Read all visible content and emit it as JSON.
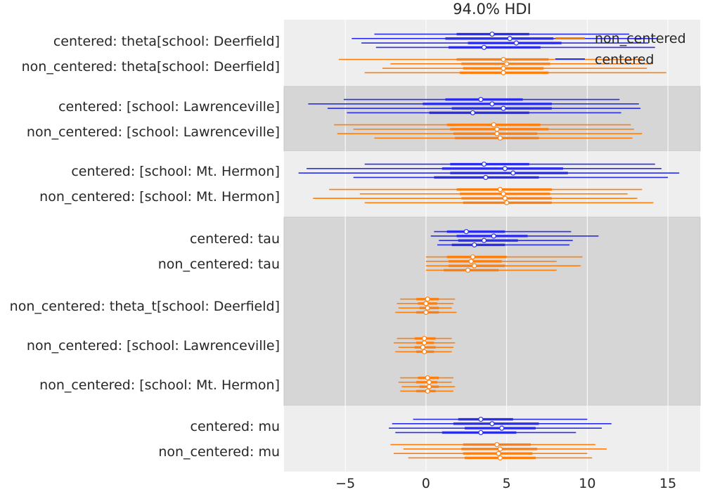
{
  "chart_data": {
    "type": "forest",
    "title": "94.0% HDI",
    "xlim": [
      -8.8,
      17.0
    ],
    "xticks": [
      {
        "v": -5,
        "label": "−5"
      },
      {
        "v": 0,
        "label": "0"
      },
      {
        "v": 5,
        "label": "5"
      },
      {
        "v": 10,
        "label": "10"
      },
      {
        "v": 15,
        "label": "15"
      }
    ],
    "legend": {
      "position": "top-right",
      "entries": [
        {
          "label": "non_centered",
          "color": "#ff7f0e"
        },
        {
          "label": "centered",
          "color": "#2a2eec"
        }
      ]
    },
    "colors": {
      "centered": "#2a2eec",
      "non_centered": "#ff7f0e",
      "band_light": "#eeeeee",
      "band_dark": "#d6d6d6"
    },
    "bands": [
      {
        "from": 0,
        "to": 2,
        "shade": "light"
      },
      {
        "from": 2,
        "to": 4,
        "shade": "dark"
      },
      {
        "from": 4,
        "to": 6,
        "shade": "light"
      },
      {
        "from": 6,
        "to": 11,
        "shade": "dark"
      },
      {
        "from": 11,
        "to": 13,
        "shade": "light"
      }
    ],
    "rows": [
      {
        "label": "centered: theta[school: Deerfield]",
        "model": "centered",
        "chains": [
          {
            "lo": -3.2,
            "q1": 1.9,
            "med": 4.1,
            "q3": 6.4,
            "hi": 12.6
          },
          {
            "lo": -4.6,
            "q1": 1.2,
            "med": 5.2,
            "q3": 7.9,
            "hi": 14.3
          },
          {
            "lo": -4.0,
            "q1": 2.6,
            "med": 5.6,
            "q3": 8.4,
            "hi": 13.8
          },
          {
            "lo": -3.1,
            "q1": 1.4,
            "med": 3.6,
            "q3": 7.1,
            "hi": 14.2
          }
        ]
      },
      {
        "label": "non_centered: theta[school: Deerfield]",
        "model": "non_centered",
        "chains": [
          {
            "lo": -5.4,
            "q1": 1.9,
            "med": 4.8,
            "q3": 7.6,
            "hi": 13.4
          },
          {
            "lo": -2.2,
            "q1": 2.2,
            "med": 5.0,
            "q3": 7.7,
            "hi": 14.0
          },
          {
            "lo": -2.7,
            "q1": 2.3,
            "med": 4.8,
            "q3": 7.3,
            "hi": 13.7
          },
          {
            "lo": -3.8,
            "q1": 2.1,
            "med": 4.8,
            "q3": 7.6,
            "hi": 14.9
          }
        ]
      },
      {
        "label": "centered: [school: Lawrenceville]",
        "model": "centered",
        "chains": [
          {
            "lo": -5.1,
            "q1": 1.2,
            "med": 3.4,
            "q3": 6.0,
            "hi": 12.0
          },
          {
            "lo": -7.3,
            "q1": -0.2,
            "med": 4.1,
            "q3": 7.8,
            "hi": 13.2
          },
          {
            "lo": -6.1,
            "q1": 1.6,
            "med": 4.8,
            "q3": 7.8,
            "hi": 13.3
          },
          {
            "lo": -4.9,
            "q1": 0.2,
            "med": 2.9,
            "q3": 6.4,
            "hi": 12.1
          }
        ]
      },
      {
        "label": "non_centered: [school: Lawrenceville]",
        "model": "non_centered",
        "chains": [
          {
            "lo": -5.7,
            "q1": 1.3,
            "med": 4.2,
            "q3": 7.1,
            "hi": 12.7
          },
          {
            "lo": -4.5,
            "q1": 1.5,
            "med": 4.4,
            "q3": 7.6,
            "hi": 12.9
          },
          {
            "lo": -5.5,
            "q1": 1.7,
            "med": 4.4,
            "q3": 6.9,
            "hi": 13.4
          },
          {
            "lo": -3.2,
            "q1": 1.8,
            "med": 4.6,
            "q3": 7.0,
            "hi": 12.8
          }
        ]
      },
      {
        "label": "centered: [school: Mt. Hermon]",
        "model": "centered",
        "chains": [
          {
            "lo": -3.8,
            "q1": 1.5,
            "med": 3.6,
            "q3": 6.4,
            "hi": 14.2
          },
          {
            "lo": -7.4,
            "q1": 1.0,
            "med": 4.9,
            "q3": 8.5,
            "hi": 14.6
          },
          {
            "lo": -7.9,
            "q1": 1.5,
            "med": 5.4,
            "q3": 8.8,
            "hi": 15.7
          },
          {
            "lo": -4.5,
            "q1": 0.5,
            "med": 3.7,
            "q3": 7.0,
            "hi": 15.0
          }
        ]
      },
      {
        "label": "non_centered: [school: Mt. Hermon]",
        "model": "non_centered",
        "chains": [
          {
            "lo": -6.0,
            "q1": 1.9,
            "med": 4.6,
            "q3": 7.8,
            "hi": 13.4
          },
          {
            "lo": -4.1,
            "q1": 2.1,
            "med": 4.8,
            "q3": 7.7,
            "hi": 12.5
          },
          {
            "lo": -7.0,
            "q1": 2.2,
            "med": 4.9,
            "q3": 7.8,
            "hi": 13.1
          },
          {
            "lo": -3.8,
            "q1": 2.3,
            "med": 5.0,
            "q3": 7.8,
            "hi": 14.1
          }
        ]
      },
      {
        "label": "centered: tau",
        "model": "centered",
        "chains": [
          {
            "lo": 0.5,
            "q1": 1.3,
            "med": 2.5,
            "q3": 4.9,
            "hi": 9.0
          },
          {
            "lo": 0.3,
            "q1": 1.9,
            "med": 4.2,
            "q3": 6.3,
            "hi": 10.7
          },
          {
            "lo": 0.8,
            "q1": 2.0,
            "med": 3.6,
            "q3": 5.7,
            "hi": 9.1
          },
          {
            "lo": 0.7,
            "q1": 1.6,
            "med": 3.0,
            "q3": 4.9,
            "hi": 8.9
          }
        ]
      },
      {
        "label": "non_centered: tau",
        "model": "non_centered",
        "chains": [
          {
            "lo": 0.0,
            "q1": 1.3,
            "med": 2.9,
            "q3": 5.0,
            "hi": 9.7
          },
          {
            "lo": 0.0,
            "q1": 1.4,
            "med": 2.8,
            "q3": 4.7,
            "hi": 8.1
          },
          {
            "lo": 0.0,
            "q1": 1.4,
            "med": 3.0,
            "q3": 4.9,
            "hi": 9.6
          },
          {
            "lo": 0.0,
            "q1": 1.1,
            "med": 2.6,
            "q3": 4.5,
            "hi": 8.1
          }
        ]
      },
      {
        "label": "non_centered: theta_t[school: Deerfield]",
        "model": "non_centered",
        "chains": [
          {
            "lo": -1.6,
            "q1": -0.6,
            "med": 0.1,
            "q3": 0.8,
            "hi": 1.8
          },
          {
            "lo": -1.8,
            "q1": -0.5,
            "med": 0.0,
            "q3": 0.7,
            "hi": 1.7
          },
          {
            "lo": -1.7,
            "q1": -0.4,
            "med": 0.1,
            "q3": 0.8,
            "hi": 1.6
          },
          {
            "lo": -1.9,
            "q1": -0.6,
            "med": 0.0,
            "q3": 0.8,
            "hi": 1.9
          }
        ]
      },
      {
        "label": "non_centered: [school: Lawrenceville]",
        "model": "non_centered",
        "chains": [
          {
            "lo": -1.8,
            "q1": -0.7,
            "med": -0.1,
            "q3": 0.6,
            "hi": 1.6
          },
          {
            "lo": -2.0,
            "q1": -0.6,
            "med": -0.1,
            "q3": 0.5,
            "hi": 1.8
          },
          {
            "lo": -1.7,
            "q1": -0.7,
            "med": -0.2,
            "q3": 0.6,
            "hi": 1.7
          },
          {
            "lo": -1.9,
            "q1": -0.6,
            "med": -0.1,
            "q3": 0.5,
            "hi": 1.6
          }
        ]
      },
      {
        "label": "non_centered: [school: Mt. Hermon]",
        "model": "non_centered",
        "chains": [
          {
            "lo": -1.6,
            "q1": -0.5,
            "med": 0.1,
            "q3": 0.8,
            "hi": 1.7
          },
          {
            "lo": -1.7,
            "q1": -0.6,
            "med": 0.2,
            "q3": 0.7,
            "hi": 1.6
          },
          {
            "lo": -1.5,
            "q1": -0.4,
            "med": 0.2,
            "q3": 0.8,
            "hi": 1.8
          },
          {
            "lo": -1.6,
            "q1": -0.6,
            "med": 0.1,
            "q3": 0.6,
            "hi": 1.7
          }
        ]
      },
      {
        "label": "centered: mu",
        "model": "centered",
        "chains": [
          {
            "lo": -0.8,
            "q1": 2.0,
            "med": 3.4,
            "q3": 5.4,
            "hi": 10.0
          },
          {
            "lo": -2.1,
            "q1": 1.7,
            "med": 4.1,
            "q3": 7.0,
            "hi": 11.5
          },
          {
            "lo": -2.3,
            "q1": 2.4,
            "med": 4.7,
            "q3": 6.8,
            "hi": 10.9
          },
          {
            "lo": -1.9,
            "q1": 1.0,
            "med": 3.4,
            "q3": 5.6,
            "hi": 9.3
          }
        ]
      },
      {
        "label": "non_centered: mu",
        "model": "non_centered",
        "chains": [
          {
            "lo": -2.2,
            "q1": 2.3,
            "med": 4.4,
            "q3": 6.5,
            "hi": 10.5
          },
          {
            "lo": -1.4,
            "q1": 2.2,
            "med": 4.6,
            "q3": 6.9,
            "hi": 11.2
          },
          {
            "lo": -2.0,
            "q1": 2.3,
            "med": 4.5,
            "q3": 6.6,
            "hi": 10.0
          },
          {
            "lo": -1.1,
            "q1": 2.4,
            "med": 4.6,
            "q3": 6.8,
            "hi": 10.3
          }
        ]
      }
    ]
  }
}
